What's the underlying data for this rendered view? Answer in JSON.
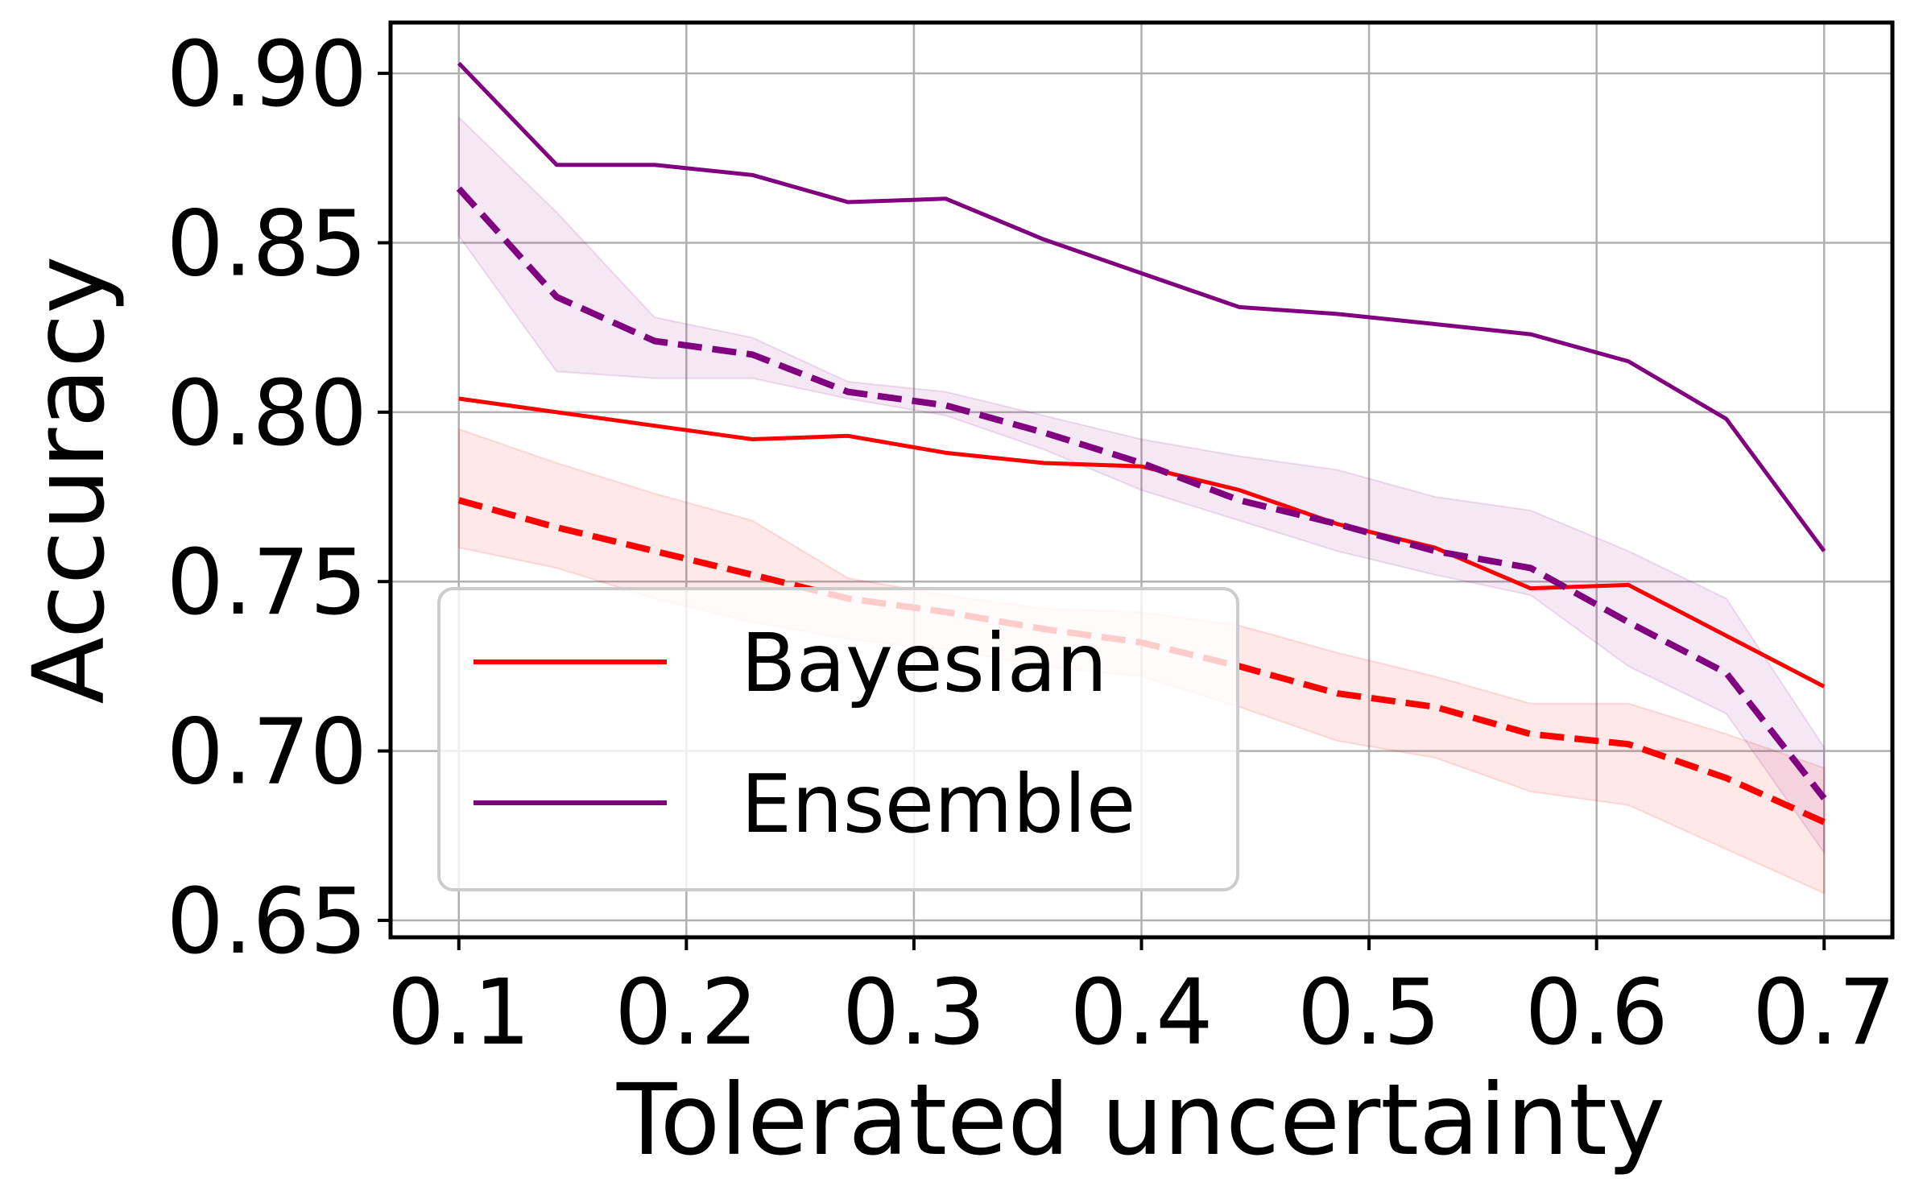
{
  "chart_data": {
    "type": "line",
    "xlabel": "Tolerated uncertainty",
    "ylabel": "Accuracy",
    "xlim": [
      0.07,
      0.73
    ],
    "ylim": [
      0.645,
      0.915
    ],
    "xticks": [
      0.1,
      0.2,
      0.3,
      0.4,
      0.5,
      0.6,
      0.7
    ],
    "xtick_labels": [
      "0.1",
      "0.2",
      "0.3",
      "0.4",
      "0.5",
      "0.6",
      "0.7"
    ],
    "yticks": [
      0.65,
      0.7,
      0.75,
      0.8,
      0.85,
      0.9
    ],
    "ytick_labels": [
      "0.65",
      "0.70",
      "0.75",
      "0.80",
      "0.85",
      "0.90"
    ],
    "grid": true,
    "legend_position": "bottom-left",
    "x": [
      0.1,
      0.143,
      0.186,
      0.229,
      0.271,
      0.314,
      0.357,
      0.4,
      0.443,
      0.486,
      0.529,
      0.571,
      0.614,
      0.657,
      0.7
    ],
    "series": [
      {
        "name": "Bayesian",
        "style": "solid",
        "color": "#ff0000",
        "values": [
          0.804,
          0.8,
          0.796,
          0.792,
          0.793,
          0.788,
          0.785,
          0.784,
          0.777,
          0.767,
          0.76,
          0.748,
          0.749,
          0.734,
          0.719
        ]
      },
      {
        "name": "Ensemble",
        "style": "solid",
        "color": "#800080",
        "values": [
          0.903,
          0.873,
          0.873,
          0.87,
          0.862,
          0.863,
          0.851,
          0.841,
          0.831,
          0.829,
          0.826,
          0.823,
          0.815,
          0.798,
          0.759
        ]
      },
      {
        "style": "dashed",
        "color": "#ff0000",
        "values": [
          0.774,
          0.766,
          0.759,
          0.752,
          0.745,
          0.741,
          0.736,
          0.732,
          0.725,
          0.717,
          0.713,
          0.705,
          0.702,
          0.692,
          0.679
        ],
        "band_lower": [
          0.76,
          0.754,
          0.745,
          0.738,
          0.733,
          0.73,
          0.725,
          0.722,
          0.713,
          0.703,
          0.698,
          0.688,
          0.684,
          0.671,
          0.658
        ],
        "band_upper": [
          0.795,
          0.785,
          0.776,
          0.768,
          0.751,
          0.746,
          0.742,
          0.741,
          0.737,
          0.729,
          0.722,
          0.714,
          0.714,
          0.705,
          0.695
        ]
      },
      {
        "style": "dashed",
        "color": "#800080",
        "values": [
          0.866,
          0.834,
          0.821,
          0.817,
          0.806,
          0.802,
          0.794,
          0.785,
          0.774,
          0.767,
          0.759,
          0.754,
          0.738,
          0.723,
          0.686
        ],
        "band_lower": [
          0.852,
          0.812,
          0.81,
          0.81,
          0.804,
          0.799,
          0.789,
          0.777,
          0.768,
          0.759,
          0.752,
          0.746,
          0.725,
          0.711,
          0.67
        ],
        "band_upper": [
          0.887,
          0.859,
          0.828,
          0.822,
          0.809,
          0.806,
          0.799,
          0.792,
          0.787,
          0.783,
          0.775,
          0.771,
          0.759,
          0.745,
          0.701
        ]
      }
    ]
  }
}
